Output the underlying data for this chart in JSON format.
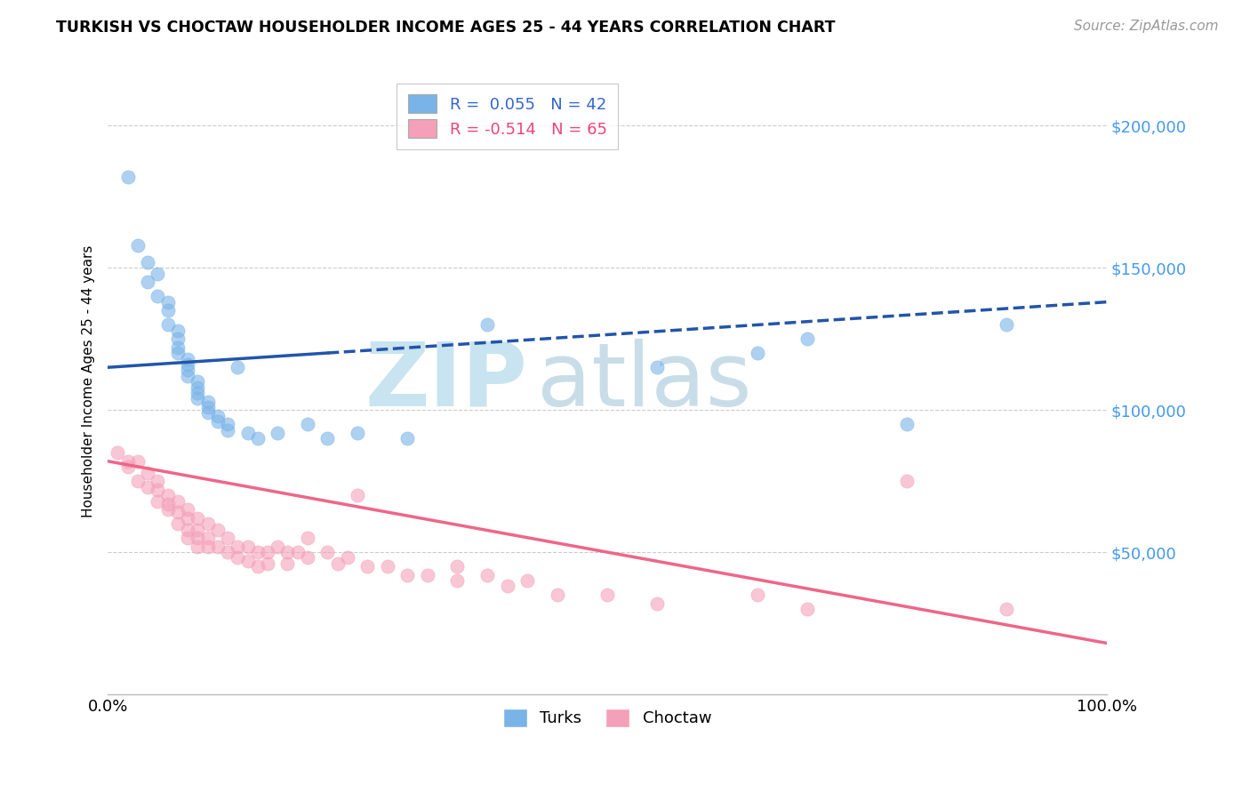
{
  "title": "TURKISH VS CHOCTAW HOUSEHOLDER INCOME AGES 25 - 44 YEARS CORRELATION CHART",
  "source_text": "Source: ZipAtlas.com",
  "ylabel": "Householder Income Ages 25 - 44 years",
  "x_ticks": [
    "0.0%",
    "100.0%"
  ],
  "y_tick_labels": [
    "$50,000",
    "$100,000",
    "$150,000",
    "$200,000"
  ],
  "y_tick_values": [
    50000,
    100000,
    150000,
    200000
  ],
  "xlim": [
    0.0,
    1.0
  ],
  "ylim": [
    0,
    220000
  ],
  "turks_color": "#7AB3E8",
  "choctaw_color": "#F4A0B8",
  "turks_line_color": "#2255AA",
  "choctaw_line_color": "#EE6688",
  "watermark_zip": "ZIP",
  "watermark_atlas": "atlas",
  "watermark_color_zip": "#c8e4f0",
  "watermark_color_atlas": "#c8dde8",
  "turks_line_x": [
    0.0,
    1.0
  ],
  "turks_line_y": [
    115000,
    138000
  ],
  "choctaw_line_x": [
    0.0,
    1.0
  ],
  "choctaw_line_y": [
    82000,
    18000
  ],
  "turks_scatter_x": [
    0.02,
    0.03,
    0.04,
    0.04,
    0.05,
    0.05,
    0.06,
    0.06,
    0.06,
    0.07,
    0.07,
    0.07,
    0.07,
    0.08,
    0.08,
    0.08,
    0.08,
    0.09,
    0.09,
    0.09,
    0.09,
    0.1,
    0.1,
    0.1,
    0.11,
    0.11,
    0.12,
    0.12,
    0.13,
    0.14,
    0.15,
    0.17,
    0.2,
    0.22,
    0.25,
    0.3,
    0.38,
    0.55,
    0.65,
    0.7,
    0.8,
    0.9
  ],
  "turks_scatter_y": [
    182000,
    158000,
    152000,
    145000,
    148000,
    140000,
    138000,
    135000,
    130000,
    128000,
    125000,
    122000,
    120000,
    118000,
    116000,
    114000,
    112000,
    110000,
    108000,
    106000,
    104000,
    103000,
    101000,
    99000,
    98000,
    96000,
    95000,
    93000,
    115000,
    92000,
    90000,
    92000,
    95000,
    90000,
    92000,
    90000,
    130000,
    115000,
    120000,
    125000,
    95000,
    130000
  ],
  "choctaw_scatter_x": [
    0.01,
    0.02,
    0.02,
    0.03,
    0.03,
    0.04,
    0.04,
    0.05,
    0.05,
    0.05,
    0.06,
    0.06,
    0.06,
    0.07,
    0.07,
    0.07,
    0.08,
    0.08,
    0.08,
    0.08,
    0.09,
    0.09,
    0.09,
    0.09,
    0.1,
    0.1,
    0.1,
    0.11,
    0.11,
    0.12,
    0.12,
    0.13,
    0.13,
    0.14,
    0.14,
    0.15,
    0.15,
    0.16,
    0.16,
    0.17,
    0.18,
    0.18,
    0.19,
    0.2,
    0.2,
    0.22,
    0.23,
    0.24,
    0.25,
    0.26,
    0.28,
    0.3,
    0.32,
    0.35,
    0.35,
    0.38,
    0.4,
    0.42,
    0.45,
    0.5,
    0.55,
    0.65,
    0.7,
    0.8,
    0.9
  ],
  "choctaw_scatter_y": [
    85000,
    82000,
    80000,
    82000,
    75000,
    78000,
    73000,
    75000,
    72000,
    68000,
    70000,
    67000,
    65000,
    68000,
    64000,
    60000,
    65000,
    62000,
    58000,
    55000,
    62000,
    58000,
    55000,
    52000,
    60000,
    55000,
    52000,
    58000,
    52000,
    55000,
    50000,
    52000,
    48000,
    52000,
    47000,
    50000,
    45000,
    50000,
    46000,
    52000,
    50000,
    46000,
    50000,
    55000,
    48000,
    50000,
    46000,
    48000,
    70000,
    45000,
    45000,
    42000,
    42000,
    45000,
    40000,
    42000,
    38000,
    40000,
    35000,
    35000,
    32000,
    35000,
    30000,
    75000,
    30000
  ]
}
